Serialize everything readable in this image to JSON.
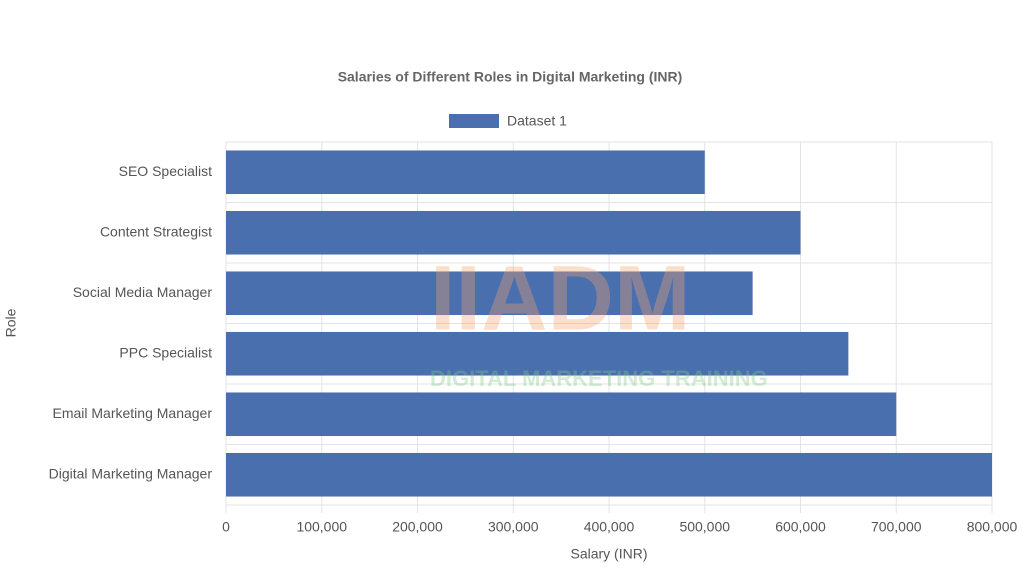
{
  "chart_data": {
    "type": "bar",
    "orientation": "horizontal",
    "title": "Salaries of Different Roles in Digital Marketing (INR)",
    "x_label": "Salary (INR)",
    "y_label": "Role",
    "categories": [
      "SEO Specialist",
      "Content Strategist",
      "Social Media Manager",
      "PPC Specialist",
      "Email Marketing Manager",
      "Digital Marketing Manager"
    ],
    "series": [
      {
        "name": "Dataset 1",
        "color": "#4a6fae",
        "values": [
          500000,
          600000,
          550000,
          650000,
          700000,
          800000
        ]
      }
    ],
    "xlim": [
      0,
      800000
    ],
    "xticks": [
      0,
      {
        "value": 100000,
        "label": "100,000"
      },
      {
        "value": 200000,
        "label": "200,000"
      },
      {
        "value": 300000,
        "label": "300,000"
      },
      {
        "value": 400000,
        "label": "400,000"
      },
      {
        "value": 500000,
        "label": "500,000"
      },
      {
        "value": 600000,
        "label": "600,000"
      },
      {
        "value": 700000,
        "label": "700,000"
      },
      {
        "value": 800000,
        "label": "800,000"
      }
    ],
    "grid": true,
    "legend": "top",
    "watermark": {
      "title": "IIADM",
      "subtitle": "DIGITAL MARKETING TRAINING"
    }
  }
}
